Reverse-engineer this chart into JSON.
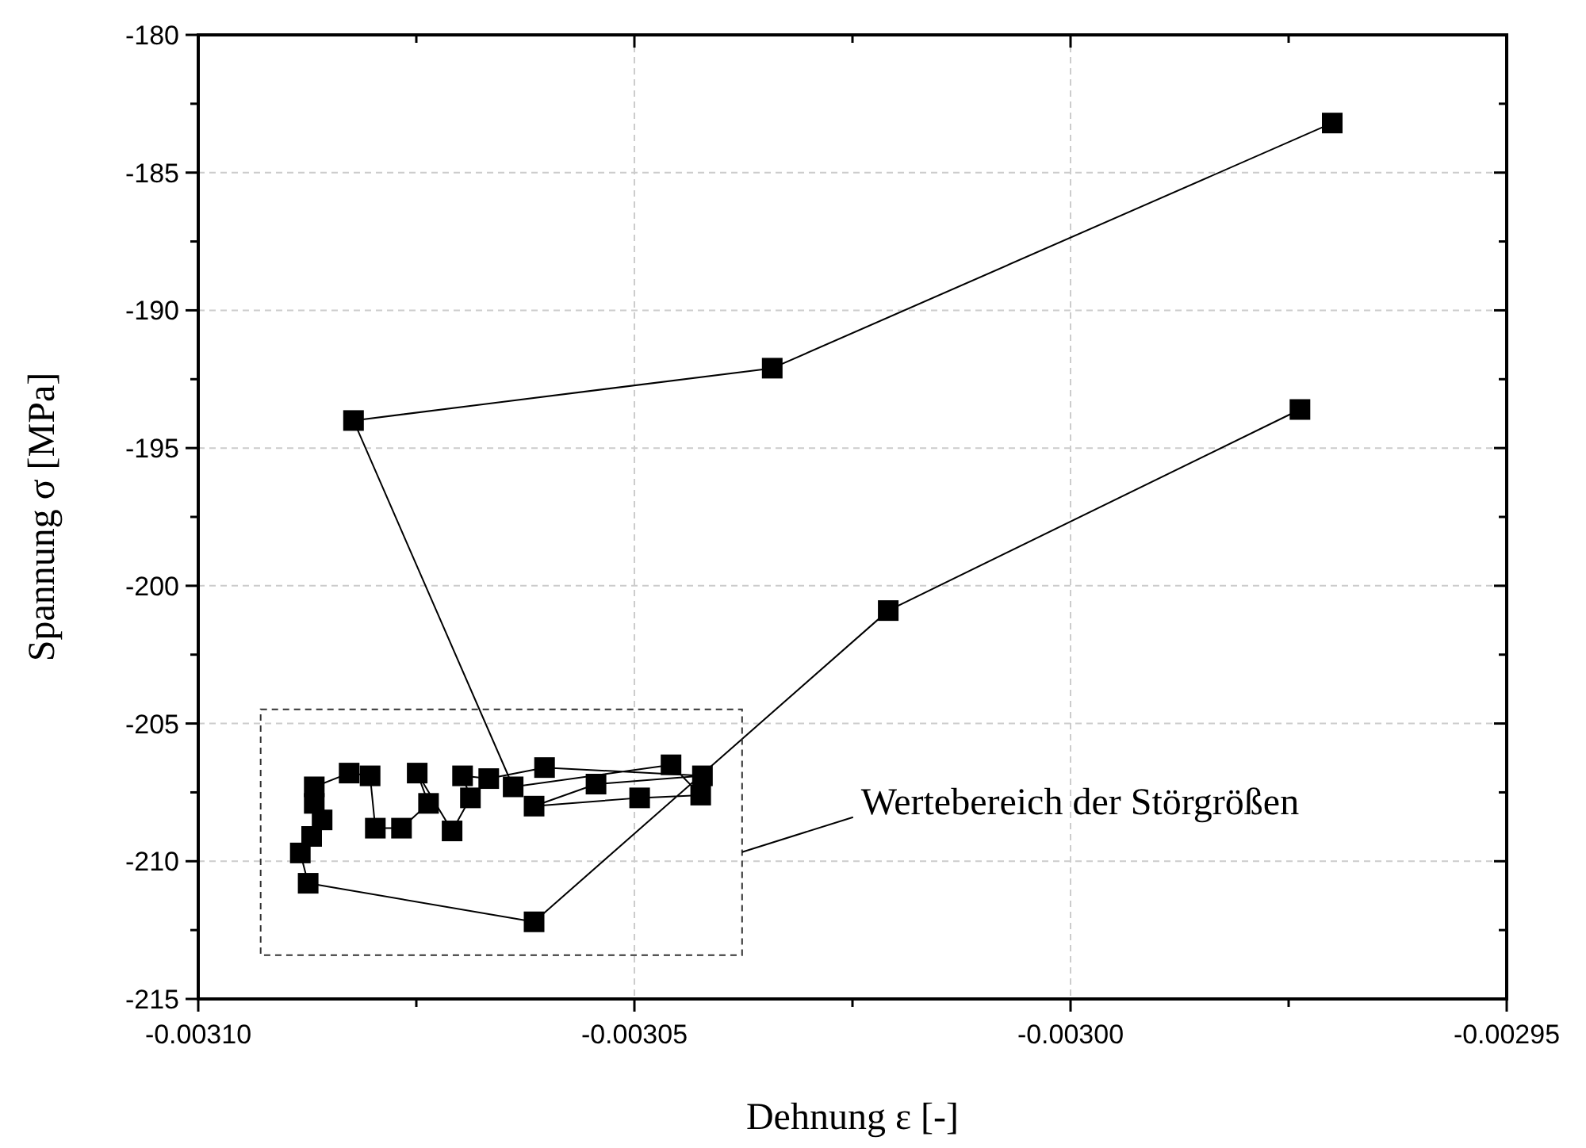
{
  "chart_data": {
    "type": "line",
    "xlabel": "Dehnung ε [-]",
    "ylabel": "Spannung σ [MPa]",
    "x": [
      -0.00297,
      -0.0030342,
      -0.0030822,
      -0.0030639,
      -0.0030458,
      -0.0030424,
      -0.0030494,
      -0.0030615,
      -0.0030544,
      -0.0030422,
      -0.0030603,
      -0.0030667,
      -0.0030697,
      -0.0030688,
      -0.0030709,
      -0.0030749,
      -0.0030736,
      -0.0030767,
      -0.0030797,
      -0.0030803,
      -0.0030827,
      -0.0030867,
      -0.0030867,
      -0.0030858,
      -0.003087,
      -0.0030883,
      -0.0030874,
      -0.0030615,
      -0.0030209,
      -0.0029737
    ],
    "series": [
      {
        "color": "#000000",
        "values": [
          -183.2,
          -192.1,
          -194.0,
          -207.3,
          -206.5,
          -207.6,
          -207.7,
          -208.0,
          -207.2,
          -206.9,
          -206.6,
          -207.0,
          -206.9,
          -207.7,
          -208.9,
          -206.8,
          -207.9,
          -208.8,
          -208.8,
          -206.9,
          -206.8,
          -207.3,
          -207.9,
          -208.5,
          -209.1,
          -209.7,
          -210.8,
          -212.2,
          -200.9,
          -193.6
        ]
      }
    ],
    "marker": "square",
    "line_style": "solid",
    "grid": true,
    "xlim": [
      -0.0031,
      -0.00295
    ],
    "xticks": [
      {
        "value": -0.0031,
        "label": "-0.00310"
      },
      {
        "value": -0.003075,
        "label": null
      },
      {
        "value": -0.00305,
        "label": "-0.00305"
      },
      {
        "value": -0.003025,
        "label": null
      },
      {
        "value": -0.003,
        "label": "-0.00300"
      },
      {
        "value": -0.002975,
        "label": null
      },
      {
        "value": -0.00295,
        "label": "-0.00295"
      }
    ],
    "ylim": [
      -215,
      -180
    ],
    "yticks": [
      -215,
      {
        "value": -212.5,
        "label": null
      },
      -210,
      {
        "value": -207.5,
        "label": null
      },
      -205,
      {
        "value": -202.5,
        "label": null
      },
      -200,
      {
        "value": -197.5,
        "label": null
      },
      -195,
      {
        "value": -192.5,
        "label": null
      },
      -190,
      {
        "value": -187.5,
        "label": null
      },
      -185,
      {
        "value": -182.5,
        "label": null
      },
      -180
    ],
    "annotations": [
      "Wertebereich der Störgrößen"
    ]
  }
}
